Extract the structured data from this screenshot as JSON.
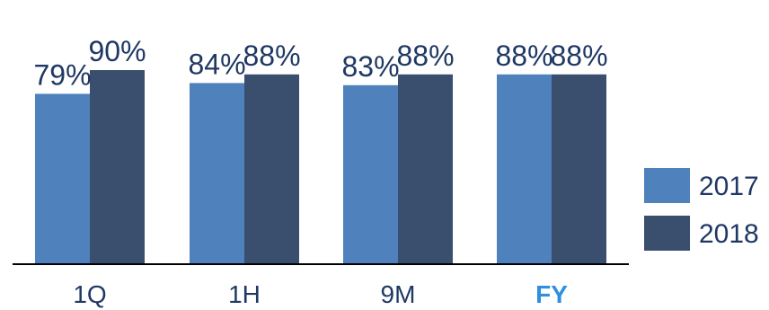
{
  "chart_data": {
    "type": "bar",
    "categories": [
      "1Q",
      "1H",
      "9M",
      "FY"
    ],
    "highlight_category": "FY",
    "series": [
      {
        "name": "2017",
        "values": [
          79,
          84,
          83,
          88
        ],
        "labels": [
          "79%",
          "84%",
          "83%",
          "88%"
        ]
      },
      {
        "name": "2018",
        "values": [
          90,
          88,
          88,
          88
        ],
        "labels": [
          "90%",
          "88%",
          "88%",
          "88%"
        ]
      }
    ],
    "ylim": [
      0,
      100
    ],
    "grid": false,
    "legend_position": "right",
    "title": "",
    "xlabel": "",
    "ylabel": ""
  },
  "colors": {
    "series_2017": "#4f81bd",
    "series_2018": "#3a4f6e",
    "text": "#1f3864",
    "highlight_text": "#2e8fe0",
    "axis": "#000000"
  }
}
